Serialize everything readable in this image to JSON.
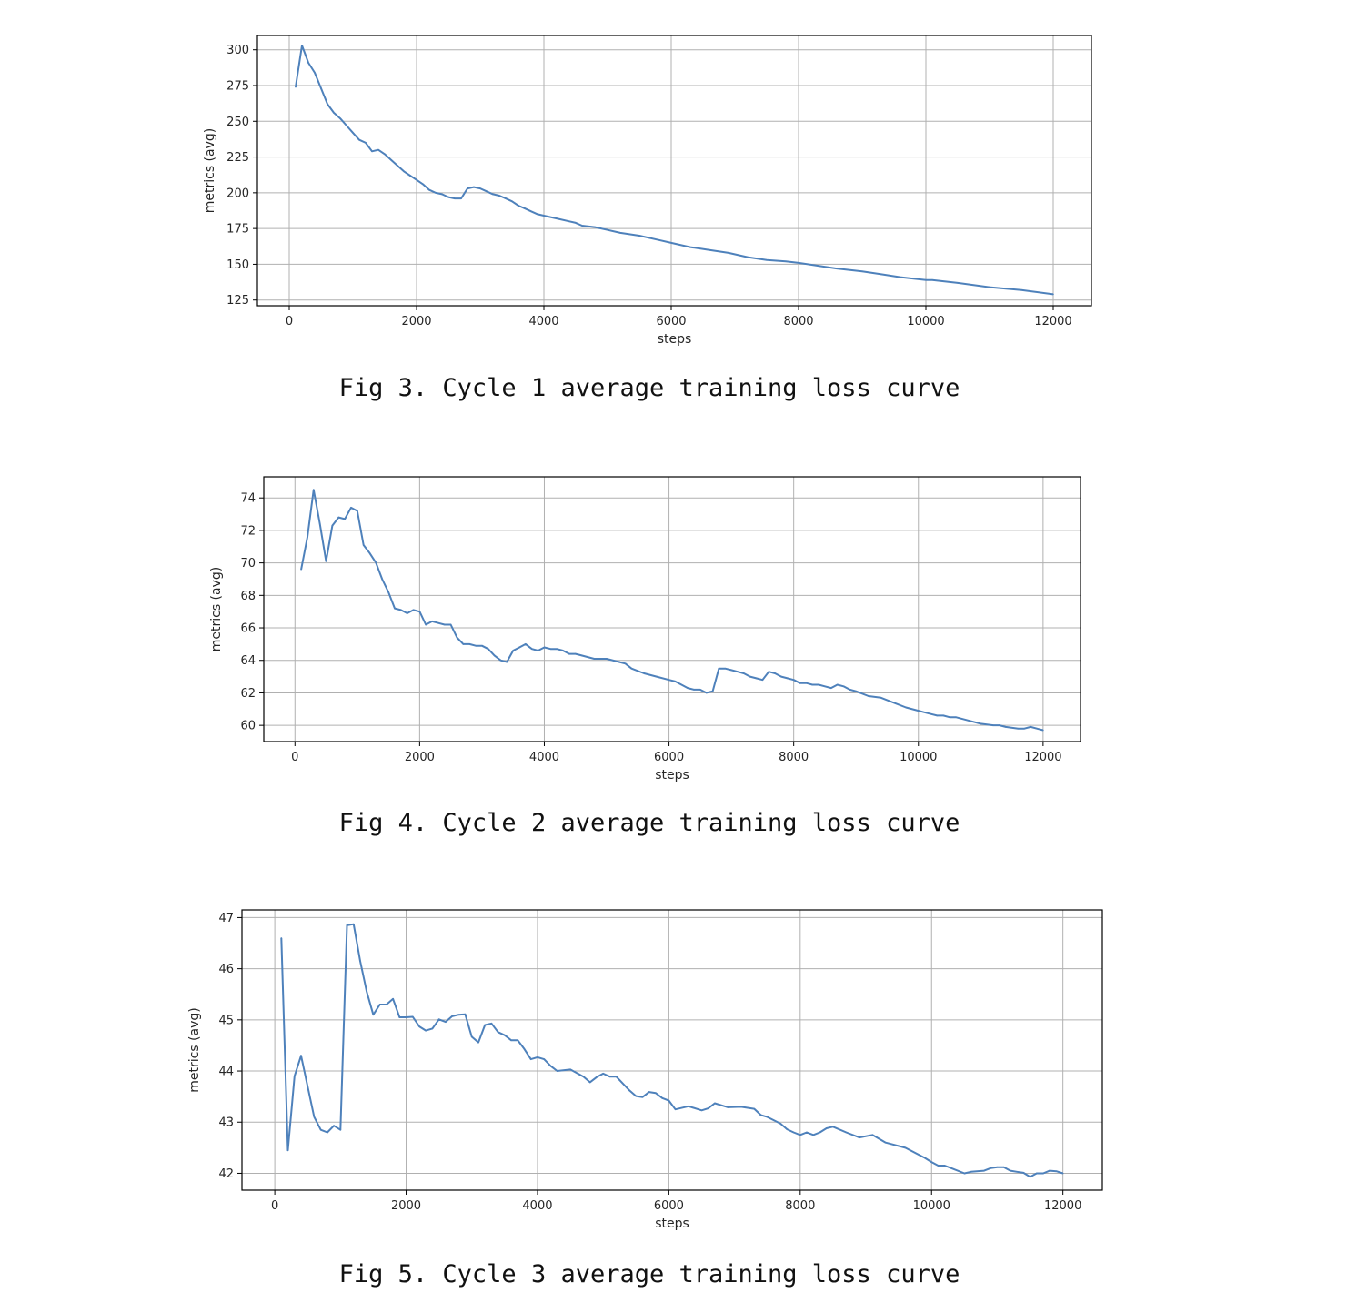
{
  "style": {
    "line_color": "#4e81bb",
    "grid_color": "#b0b0b0",
    "frame_color": "#000000"
  },
  "chart_data": [
    {
      "type": "line",
      "title": "",
      "xlabel": "steps",
      "ylabel": "metrics (avg)",
      "grid": true,
      "xlim": [
        -500,
        12600
      ],
      "ylim": [
        121,
        310
      ],
      "xticks": [
        0,
        2000,
        4000,
        6000,
        8000,
        10000,
        12000
      ],
      "yticks": [
        125,
        150,
        175,
        200,
        225,
        250,
        275,
        300
      ],
      "x": [
        100,
        200,
        300,
        400,
        500,
        600,
        700,
        800,
        900,
        1000,
        1100,
        1200,
        1300,
        1400,
        1500,
        1600,
        1700,
        1800,
        1900,
        2000,
        2100,
        2200,
        2300,
        2400,
        2500,
        2600,
        2700,
        2800,
        2900,
        3000,
        3100,
        3200,
        3300,
        3400,
        3500,
        3600,
        3700,
        3800,
        3900,
        4000,
        4200,
        4400,
        4500,
        4600,
        4800,
        5000,
        5200,
        5500,
        5800,
        6000,
        6300,
        6600,
        6900,
        7200,
        7500,
        7800,
        8000,
        8300,
        8600,
        9000,
        9300,
        9600,
        10000,
        10100,
        10500,
        11000,
        11500,
        12000
      ],
      "series": [
        {
          "values": [
            274,
            303,
            291,
            284,
            273,
            262,
            256,
            252,
            247,
            242,
            237,
            235,
            229,
            230,
            227,
            223,
            219,
            215,
            212,
            209,
            206,
            202,
            200,
            199,
            197,
            196,
            196,
            203,
            204,
            203,
            201,
            199,
            198,
            196,
            194,
            191,
            189,
            187,
            185,
            184,
            182,
            180,
            179,
            177,
            176,
            174,
            172,
            170,
            167,
            165,
            162,
            160,
            158,
            155,
            153,
            152,
            151,
            149,
            147,
            145,
            143,
            141,
            139,
            139,
            137,
            134,
            132,
            129
          ]
        }
      ]
    },
    {
      "type": "line",
      "title": "",
      "xlabel": "steps",
      "ylabel": "metrics (avg)",
      "grid": true,
      "xlim": [
        -500,
        12600
      ],
      "ylim": [
        59,
        75.3
      ],
      "xticks": [
        0,
        2000,
        4000,
        6000,
        8000,
        10000,
        12000
      ],
      "yticks": [
        60,
        62,
        64,
        66,
        68,
        70,
        72,
        74
      ],
      "x": [
        100,
        200,
        300,
        400,
        500,
        600,
        700,
        800,
        900,
        1000,
        1100,
        1200,
        1300,
        1400,
        1500,
        1600,
        1700,
        1800,
        1900,
        2000,
        2100,
        2200,
        2300,
        2400,
        2500,
        2600,
        2700,
        2800,
        2900,
        3000,
        3100,
        3200,
        3300,
        3400,
        3500,
        3600,
        3700,
        3800,
        3900,
        4000,
        4100,
        4200,
        4300,
        4400,
        4500,
        4600,
        4800,
        5000,
        5200,
        5300,
        5400,
        5600,
        5800,
        6000,
        6100,
        6200,
        6300,
        6400,
        6500,
        6600,
        6700,
        6800,
        6900,
        7000,
        7100,
        7200,
        7300,
        7400,
        7500,
        7600,
        7700,
        7800,
        7900,
        8000,
        8100,
        8200,
        8300,
        8400,
        8500,
        8600,
        8700,
        8800,
        8900,
        9000,
        9200,
        9400,
        9600,
        9800,
        10000,
        10200,
        10300,
        10400,
        10500,
        10600,
        10800,
        11000,
        11200,
        11300,
        11400,
        11600,
        11700,
        11800,
        11900,
        12000
      ],
      "series": [
        {
          "values": [
            69.6,
            71.6,
            74.5,
            72.4,
            70.1,
            72.3,
            72.8,
            72.7,
            73.4,
            73.2,
            71.1,
            70.6,
            70.0,
            69.0,
            68.2,
            67.2,
            67.1,
            66.9,
            67.1,
            67.0,
            66.2,
            66.4,
            66.3,
            66.2,
            66.2,
            65.4,
            65.0,
            65.0,
            64.9,
            64.9,
            64.7,
            64.3,
            64.0,
            63.9,
            64.6,
            64.8,
            65.0,
            64.7,
            64.6,
            64.8,
            64.7,
            64.7,
            64.6,
            64.4,
            64.4,
            64.3,
            64.1,
            64.1,
            63.9,
            63.8,
            63.5,
            63.2,
            63.0,
            62.8,
            62.7,
            62.5,
            62.3,
            62.2,
            62.2,
            62.0,
            62.1,
            63.5,
            63.5,
            63.4,
            63.3,
            63.2,
            63.0,
            62.9,
            62.8,
            63.3,
            63.2,
            63.0,
            62.9,
            62.8,
            62.6,
            62.6,
            62.5,
            62.5,
            62.4,
            62.3,
            62.5,
            62.4,
            62.2,
            62.1,
            61.8,
            61.7,
            61.4,
            61.1,
            60.9,
            60.7,
            60.6,
            60.6,
            60.5,
            60.5,
            60.3,
            60.1,
            60.0,
            60.0,
            59.9,
            59.8,
            59.8,
            59.9,
            59.8,
            59.7
          ]
        }
      ]
    },
    {
      "type": "line",
      "title": "",
      "xlabel": "steps",
      "ylabel": "metrics (avg)",
      "grid": true,
      "xlim": [
        -500,
        12600
      ],
      "ylim": [
        41.67,
        47.15
      ],
      "xticks": [
        0,
        2000,
        4000,
        6000,
        8000,
        10000,
        12000
      ],
      "yticks": [
        42,
        43,
        44,
        45,
        46,
        47
      ],
      "x": [
        100,
        200,
        300,
        400,
        500,
        600,
        700,
        800,
        900,
        1000,
        1100,
        1200,
        1300,
        1400,
        1500,
        1600,
        1700,
        1800,
        1900,
        2000,
        2100,
        2200,
        2300,
        2400,
        2500,
        2600,
        2700,
        2800,
        2900,
        3000,
        3100,
        3200,
        3300,
        3400,
        3500,
        3600,
        3700,
        3800,
        3900,
        4000,
        4100,
        4200,
        4300,
        4500,
        4700,
        4800,
        4900,
        5000,
        5100,
        5200,
        5400,
        5500,
        5600,
        5700,
        5800,
        5900,
        6000,
        6100,
        6300,
        6500,
        6600,
        6700,
        6900,
        7100,
        7300,
        7400,
        7500,
        7700,
        7800,
        7900,
        8000,
        8100,
        8200,
        8300,
        8400,
        8500,
        8700,
        8900,
        9100,
        9300,
        9600,
        9900,
        10000,
        10100,
        10200,
        10300,
        10500,
        10600,
        10800,
        10900,
        11000,
        11100,
        11200,
        11300,
        11400,
        11500,
        11600,
        11700,
        11800,
        11900,
        12000
      ],
      "series": [
        {
          "values": [
            46.6,
            42.45,
            43.9,
            44.3,
            43.7,
            43.1,
            42.85,
            42.8,
            42.93,
            42.85,
            46.85,
            46.87,
            46.15,
            45.55,
            45.1,
            45.3,
            45.3,
            45.41,
            45.05,
            45.05,
            45.06,
            44.87,
            44.79,
            44.83,
            45.01,
            44.96,
            45.07,
            45.1,
            45.11,
            44.67,
            44.56,
            44.9,
            44.93,
            44.76,
            44.7,
            44.6,
            44.6,
            44.43,
            44.23,
            44.27,
            44.23,
            44.1,
            44.0,
            44.03,
            43.89,
            43.78,
            43.88,
            43.95,
            43.89,
            43.89,
            43.62,
            43.51,
            43.49,
            43.59,
            43.57,
            43.47,
            43.42,
            43.25,
            43.31,
            43.23,
            43.27,
            43.37,
            43.29,
            43.3,
            43.26,
            43.14,
            43.1,
            42.97,
            42.86,
            42.8,
            42.75,
            42.8,
            42.75,
            42.8,
            42.88,
            42.91,
            42.8,
            42.7,
            42.75,
            42.6,
            42.5,
            42.3,
            42.22,
            42.15,
            42.15,
            42.1,
            42.0,
            42.03,
            42.05,
            42.1,
            42.12,
            42.12,
            42.05,
            42.03,
            42.01,
            41.93,
            42.0,
            42.0,
            42.05,
            42.04,
            42.0
          ]
        }
      ]
    }
  ],
  "captions": [
    "Fig 3. Cycle 1 average training loss curve",
    "Fig 4. Cycle 2 average training loss curve",
    "Fig 5. Cycle 3 average training loss curve"
  ]
}
